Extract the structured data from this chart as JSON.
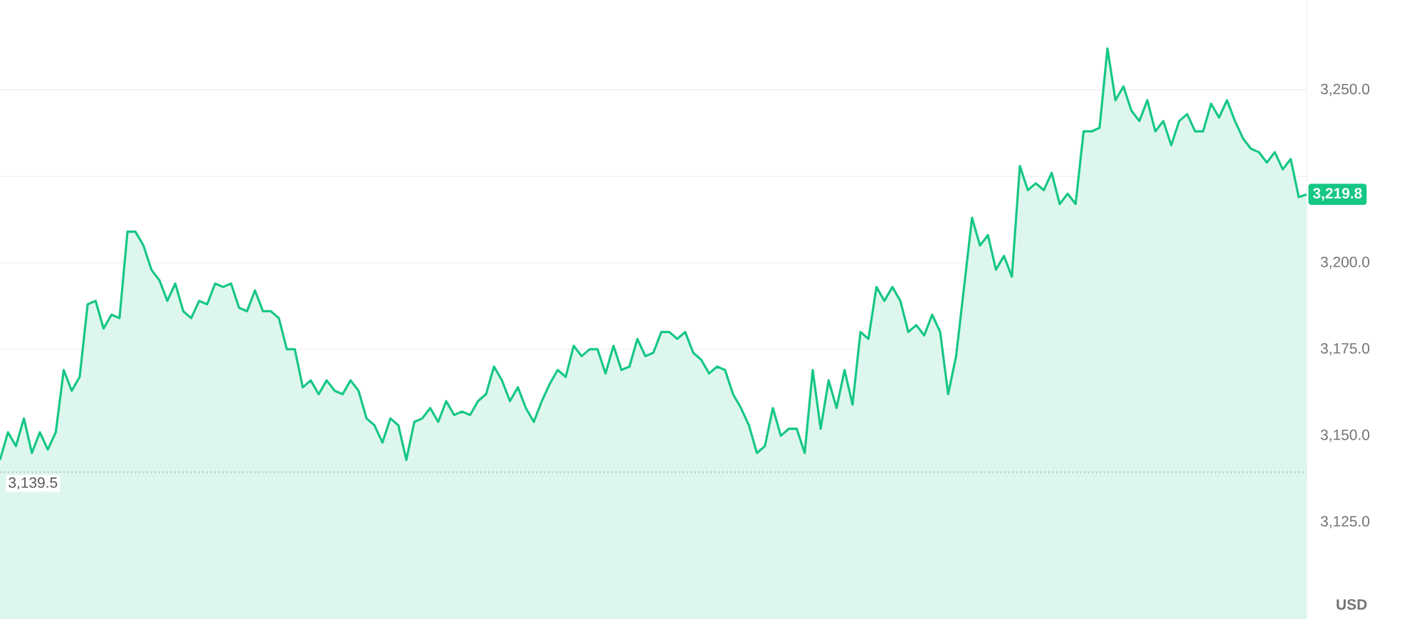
{
  "chart_data": {
    "type": "area",
    "ylabel": "USD",
    "categories": [
      null,
      null,
      null,
      null,
      null,
      null,
      null,
      null,
      null,
      null,
      null,
      null,
      null,
      null,
      null,
      null,
      null,
      null,
      null,
      null,
      null,
      null,
      null,
      null,
      null,
      null,
      null,
      null,
      null,
      null,
      null,
      null,
      null,
      null,
      null,
      null,
      null,
      null,
      null,
      null,
      null,
      null,
      null,
      null,
      null,
      null,
      null,
      null,
      null,
      null,
      null,
      null,
      null,
      null,
      null,
      null,
      null,
      null,
      null,
      null,
      null,
      null,
      null,
      null,
      null,
      null,
      null,
      null,
      null,
      null,
      null,
      null,
      null,
      null,
      null,
      null,
      null,
      null,
      null,
      null,
      null,
      null,
      null,
      null,
      null,
      null,
      null,
      null,
      null,
      null,
      null,
      null,
      null,
      null,
      null,
      null,
      null,
      null,
      null,
      null,
      null,
      null,
      null,
      null,
      null,
      null,
      null,
      null,
      null,
      null,
      null,
      null,
      null,
      null,
      null,
      null,
      null,
      null,
      null,
      null,
      null,
      null,
      null,
      null,
      null,
      null,
      null,
      null,
      null,
      null,
      null,
      null,
      null,
      null,
      null,
      null,
      null,
      null,
      null,
      null,
      null,
      null,
      null,
      null,
      null,
      null,
      null,
      null,
      null,
      null,
      null,
      null,
      null,
      null,
      null,
      null,
      null,
      null,
      null,
      null,
      null,
      null,
      null,
      null,
      null
    ],
    "color": "#16c784",
    "values": [
      3143,
      3151,
      3147,
      3155,
      3145,
      3151,
      3146,
      3151,
      3169,
      3163,
      3167,
      3188,
      3189,
      3181,
      3185,
      3184,
      3209,
      3209,
      3205,
      3198,
      3195,
      3189,
      3194,
      3186,
      3184,
      3189,
      3188,
      3194,
      3193,
      3194,
      3187,
      3186,
      3192,
      3186,
      3186,
      3184,
      3175,
      3175,
      3164,
      3166,
      3162,
      3166,
      3163,
      3162,
      3166,
      3163,
      3155,
      3153,
      3148,
      3155,
      3153,
      3143,
      3154,
      3155,
      3158,
      3154,
      3160,
      3156,
      3157,
      3156,
      3160,
      3162,
      3170,
      3166,
      3160,
      3164,
      3158,
      3154,
      3160,
      3165,
      3169,
      3167,
      3176,
      3173,
      3175,
      3175,
      3168,
      3176,
      3169,
      3170,
      3178,
      3173,
      3174,
      3180,
      3180,
      3178,
      3180,
      3174,
      3172,
      3168,
      3170,
      3169,
      3162,
      3158,
      3153,
      3145,
      3147,
      3158,
      3150,
      3152,
      3152,
      3145,
      3169,
      3152,
      3166,
      3158,
      3169,
      3159,
      3180,
      3178,
      3193,
      3189,
      3193,
      3189,
      3180,
      3182,
      3179,
      3185,
      3180,
      3162,
      3173,
      3193,
      3213,
      3205,
      3208,
      3198,
      3202,
      3196,
      3228,
      3221,
      3223,
      3221,
      3226,
      3217,
      3220,
      3217,
      3238,
      3238,
      3239,
      3262,
      3247,
      3251,
      3244,
      3241,
      3247,
      3238,
      3241,
      3234,
      3241,
      3243,
      3238,
      3238,
      3246,
      3242,
      3247,
      3241,
      3236,
      3233,
      3232,
      3229,
      3232,
      3227,
      3230,
      3219,
      3219.8
    ],
    "ylim": [
      3097,
      3276
    ],
    "yticks": [
      {
        "value": 3125,
        "label": "3,125.0"
      },
      {
        "value": 3150,
        "label": "3,150.0"
      },
      {
        "value": 3175,
        "label": "3,175.0"
      },
      {
        "value": 3200,
        "label": "3,200.0"
      },
      {
        "value": 3225,
        "label": null
      },
      {
        "value": 3250,
        "label": "3,250.0"
      }
    ],
    "grid": "y",
    "ref_lines": [
      {
        "axis": "y",
        "value": 3139.5,
        "label": "3,139.5",
        "color": "#9aa0a6",
        "line_style": "dotted"
      }
    ],
    "annotations": [
      {
        "text": "3,219.8",
        "y": 3219.8
      }
    ]
  }
}
